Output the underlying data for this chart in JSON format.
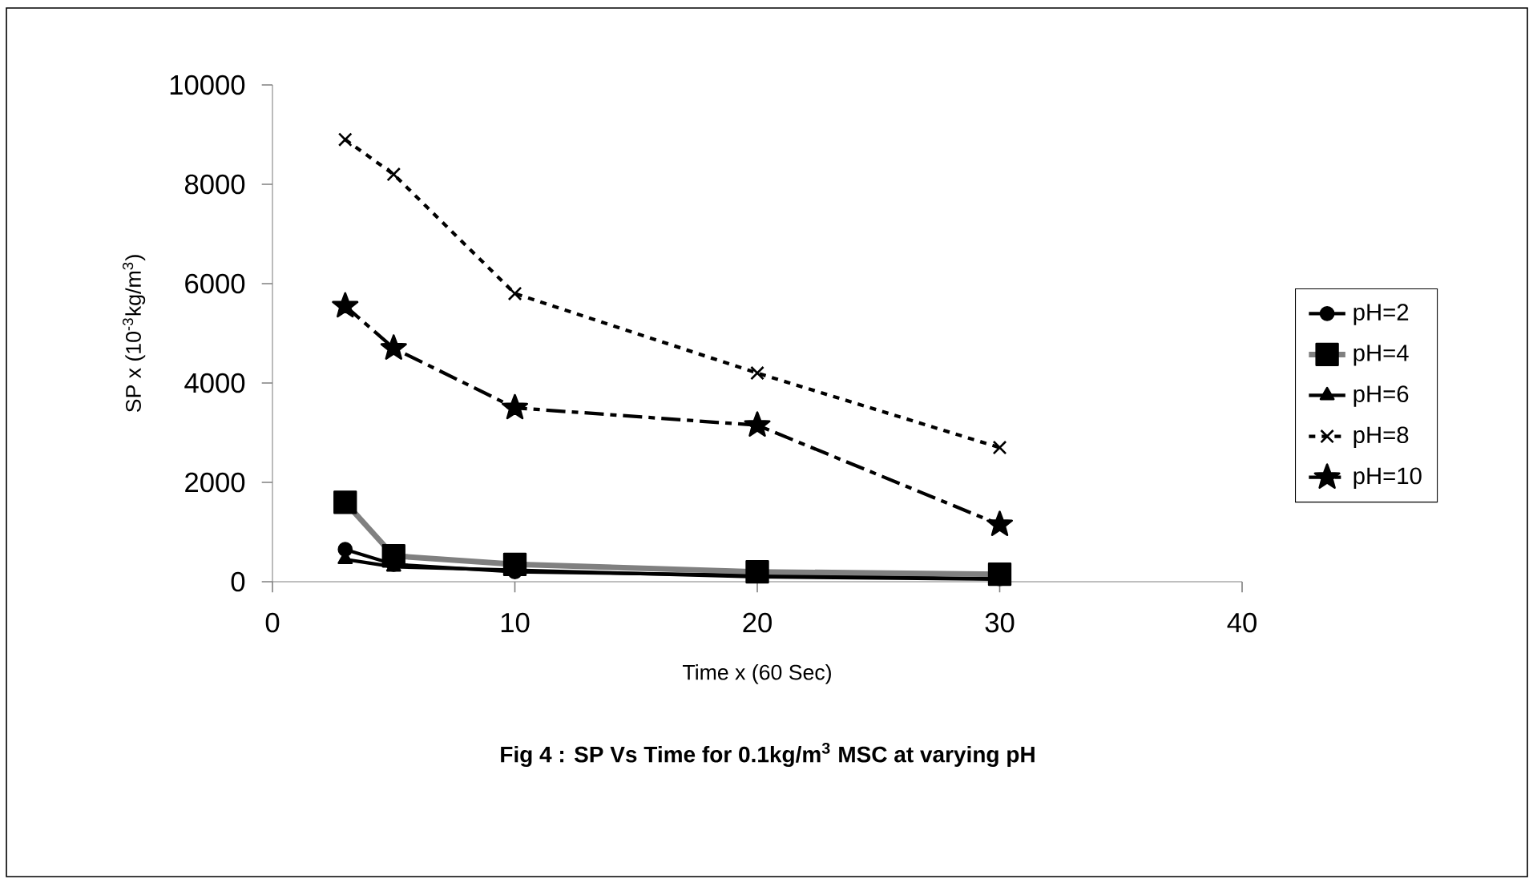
{
  "chart_data": {
    "type": "line",
    "title": "**Fig 4 : SP Vs Time for 0.1kg/m$^{3}$ MSC at varying pH**",
    "xlabel": "Time x (60 Sec)",
    "ylabel": "SP x (10$^{-3}$kg/m$^{3}$)",
    "x": [
      3,
      5,
      10,
      20,
      30
    ],
    "xlim": [
      0,
      40
    ],
    "xticks": [
      0,
      10,
      20,
      30,
      40
    ],
    "ylim": [
      0,
      10000
    ],
    "yticks": [
      0,
      2000,
      4000,
      6000,
      8000,
      10000
    ],
    "grid": false,
    "legend": "right",
    "series": [
      {
        "name": "pH=2",
        "color": "#000000",
        "marker": "circle",
        "line_style": "solid",
        "values": [
          650,
          350,
          200,
          null,
          60
        ]
      },
      {
        "name": "pH=4",
        "color": "#808080",
        "marker": "square",
        "line_style": "solid",
        "values": [
          1600,
          520,
          350,
          200,
          150
        ]
      },
      {
        "name": "pH=6",
        "color": "#000000",
        "marker": "triangle",
        "line_style": "solid",
        "values": [
          450,
          300,
          null,
          100,
          50
        ]
      },
      {
        "name": "pH=8",
        "color": "#000000",
        "marker": "cross",
        "line_style": "dotted",
        "values": [
          8900,
          8200,
          5800,
          4200,
          2700
        ]
      },
      {
        "name": "pH=10",
        "color": "#000000",
        "marker": "star",
        "line_style": "dashed",
        "values": [
          5550,
          4700,
          3500,
          3150,
          1150
        ]
      }
    ]
  }
}
